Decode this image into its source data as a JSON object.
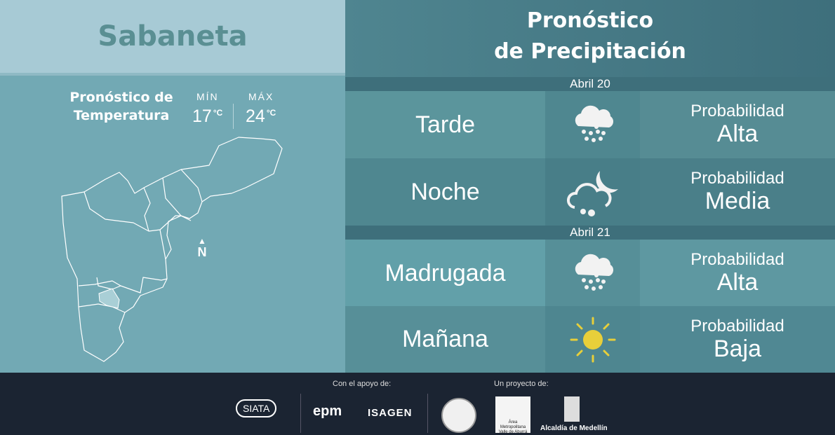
{
  "location": "Sabaneta",
  "temperature": {
    "title_line1": "Pronóstico de",
    "title_line2": "Temperatura",
    "min_label": "MÍN",
    "min_value": "17",
    "max_label": "MÁX",
    "max_value": "24",
    "unit": "°C"
  },
  "north_label": "N",
  "precip": {
    "title_line1": "Pronóstico",
    "title_line2": "de Precipitación",
    "days": [
      {
        "date": "Abril 20",
        "periods": [
          {
            "name": "Tarde",
            "icon": "heavy-rain-cloud-icon",
            "prob_label": "Probabilidad",
            "prob": "Alta"
          },
          {
            "name": "Noche",
            "icon": "night-rain-cloud-moon-icon",
            "prob_label": "Probabilidad",
            "prob": "Media"
          }
        ]
      },
      {
        "date": "Abril 21",
        "periods": [
          {
            "name": "Madrugada",
            "icon": "heavy-rain-cloud-icon",
            "prob_label": "Probabilidad",
            "prob": "Alta"
          },
          {
            "name": "Mañana",
            "icon": "sun-icon",
            "prob_label": "Probabilidad",
            "prob": "Baja"
          }
        ]
      }
    ]
  },
  "footer": {
    "support_label": "Con el apoyo de:",
    "project_label": "Un proyecto de:",
    "logos": [
      "SIATA",
      "epm",
      "ISAGEN",
      "Área Metropolitana Valle de Aburrá",
      "Alcaldía de Medellín"
    ]
  },
  "colors": {
    "sun": "#e8cf3a",
    "footer_bg": "#1b2432",
    "header_bg": "#4f8590",
    "map_bg": "#72a9b4"
  }
}
